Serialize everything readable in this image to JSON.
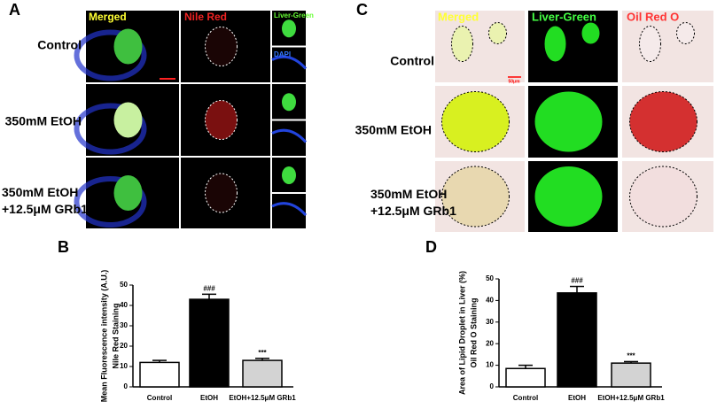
{
  "panel_a": {
    "label": "A",
    "columns": [
      "Merged",
      "Nile Red",
      "Liver-Green",
      "DAPI"
    ],
    "rows": [
      [
        "Control"
      ],
      [
        "350mM EtOH"
      ],
      [
        "350mM EtOH",
        "+12.5μM GRb1"
      ]
    ]
  },
  "panel_c": {
    "label": "C",
    "columns": [
      "Merged",
      "Liver-Green",
      "Oil Red O"
    ],
    "rows": [
      [
        "Control"
      ],
      [
        "350mM EtOH"
      ],
      [
        "350mM EtOH",
        "+12.5μM GRb1"
      ]
    ],
    "scale_bar": "50μm"
  },
  "chart_data": [
    {
      "type": "bar",
      "panel": "B",
      "ylabel": [
        "Mean Fluorescence intensity  (A.U.)",
        "Nile Red Staining"
      ],
      "categories": [
        "Control",
        "EtOH",
        "EtOH+12.5μM GRb1"
      ],
      "values": [
        12,
        43,
        13
      ],
      "errors": [
        1,
        2.5,
        1
      ],
      "significance": [
        null,
        "###",
        "***"
      ],
      "colors": [
        "#ffffff",
        "#000000",
        "#d3d3d3"
      ],
      "ylim": [
        0,
        50
      ],
      "yticks": [
        0,
        10,
        20,
        30,
        40,
        50
      ]
    },
    {
      "type": "bar",
      "panel": "D",
      "ylabel": [
        "Area of Lipid Droplet in Liver (%)",
        "Oil Red O Staining"
      ],
      "categories": [
        "Control",
        "EtOH",
        "EtOH+12.5μM GRb1"
      ],
      "values": [
        8.5,
        43.5,
        11
      ],
      "errors": [
        1.5,
        3,
        0.7
      ],
      "significance": [
        null,
        "###",
        "***"
      ],
      "colors": [
        "#ffffff",
        "#000000",
        "#d3d3d3"
      ],
      "ylim": [
        0,
        50
      ],
      "yticks": [
        0,
        10,
        20,
        30,
        40,
        50
      ]
    }
  ]
}
